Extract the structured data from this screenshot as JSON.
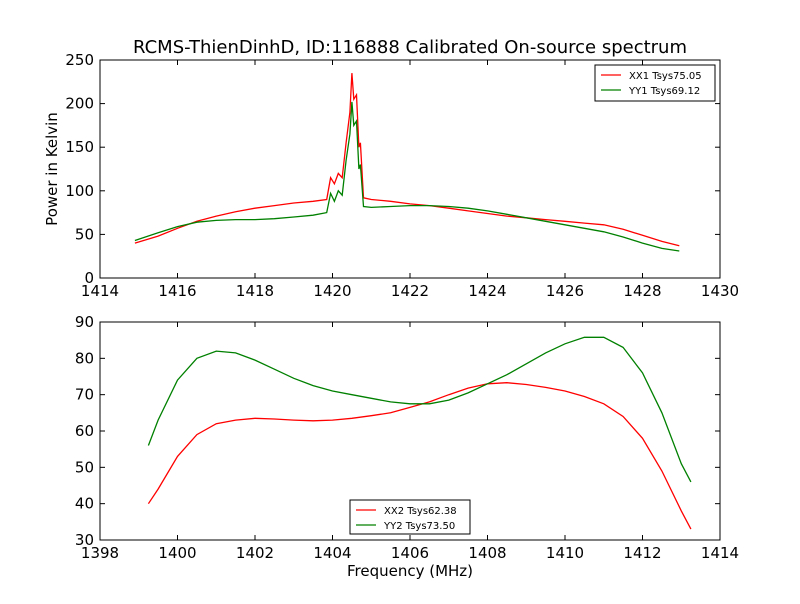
{
  "figure": {
    "title": "RCMS-ThienDinhD, ID:116888 Calibrated On-source spectrum"
  },
  "chart_data": [
    {
      "type": "line",
      "title": "RCMS-ThienDinhD, ID:116888 Calibrated On-source spectrum",
      "xlabel": "",
      "ylabel": "Power in Kelvin",
      "xlim": [
        1414,
        1430
      ],
      "ylim": [
        0,
        250
      ],
      "xticks": [
        "1414",
        "1416",
        "1418",
        "1420",
        "1422",
        "1424",
        "1426",
        "1428",
        "1430"
      ],
      "yticks": [
        "0",
        "50",
        "100",
        "150",
        "200",
        "250"
      ],
      "grid": false,
      "legend_position": "top-right",
      "series": [
        {
          "name": "XX1 Tsys75.05",
          "color": "#ff0000",
          "points": [
            [
              1414.9,
              40
            ],
            [
              1415.5,
              48
            ],
            [
              1416,
              57
            ],
            [
              1416.5,
              65
            ],
            [
              1417,
              71
            ],
            [
              1417.5,
              76
            ],
            [
              1418,
              80
            ],
            [
              1418.5,
              83
            ],
            [
              1419,
              86
            ],
            [
              1419.5,
              88
            ],
            [
              1419.85,
              90
            ],
            [
              1419.95,
              115
            ],
            [
              1420.05,
              108
            ],
            [
              1420.15,
              120
            ],
            [
              1420.25,
              115
            ],
            [
              1420.35,
              155
            ],
            [
              1420.45,
              190
            ],
            [
              1420.5,
              235
            ],
            [
              1420.55,
              205
            ],
            [
              1420.62,
              210
            ],
            [
              1420.68,
              150
            ],
            [
              1420.72,
              155
            ],
            [
              1420.8,
              92
            ],
            [
              1421,
              90
            ],
            [
              1421.5,
              88
            ],
            [
              1422,
              85
            ],
            [
              1422.5,
              83
            ],
            [
              1423,
              80
            ],
            [
              1423.5,
              77
            ],
            [
              1424,
              74
            ],
            [
              1424.5,
              71
            ],
            [
              1425,
              69
            ],
            [
              1425.5,
              67
            ],
            [
              1426,
              65
            ],
            [
              1426.5,
              63
            ],
            [
              1427,
              61
            ],
            [
              1427.5,
              56
            ],
            [
              1428,
              49
            ],
            [
              1428.5,
              42
            ],
            [
              1428.95,
              37
            ]
          ]
        },
        {
          "name": "YY1 Tsys69.12",
          "color": "#008000",
          "points": [
            [
              1414.9,
              43
            ],
            [
              1415.5,
              52
            ],
            [
              1416,
              59
            ],
            [
              1416.5,
              64
            ],
            [
              1417,
              66
            ],
            [
              1417.5,
              67
            ],
            [
              1418,
              67
            ],
            [
              1418.5,
              68
            ],
            [
              1419,
              70
            ],
            [
              1419.5,
              72
            ],
            [
              1419.85,
              75
            ],
            [
              1419.95,
              97
            ],
            [
              1420.05,
              88
            ],
            [
              1420.15,
              100
            ],
            [
              1420.25,
              95
            ],
            [
              1420.35,
              135
            ],
            [
              1420.45,
              165
            ],
            [
              1420.5,
              202
            ],
            [
              1420.55,
              175
            ],
            [
              1420.62,
              180
            ],
            [
              1420.68,
              125
            ],
            [
              1420.72,
              130
            ],
            [
              1420.8,
              82
            ],
            [
              1421,
              81
            ],
            [
              1421.5,
              82
            ],
            [
              1422,
              83
            ],
            [
              1422.5,
              83
            ],
            [
              1423,
              82
            ],
            [
              1423.5,
              80
            ],
            [
              1424,
              77
            ],
            [
              1424.5,
              73
            ],
            [
              1425,
              69
            ],
            [
              1425.5,
              65
            ],
            [
              1426,
              61
            ],
            [
              1426.5,
              57
            ],
            [
              1427,
              53
            ],
            [
              1427.5,
              47
            ],
            [
              1428,
              40
            ],
            [
              1428.5,
              34
            ],
            [
              1428.95,
              31
            ]
          ]
        }
      ]
    },
    {
      "type": "line",
      "title": "",
      "xlabel": "Frequency (MHz)",
      "ylabel": "",
      "xlim": [
        1398,
        1414
      ],
      "ylim": [
        30,
        90
      ],
      "xticks": [
        "1398",
        "1400",
        "1402",
        "1404",
        "1406",
        "1408",
        "1410",
        "1412",
        "1414"
      ],
      "yticks": [
        "30",
        "40",
        "50",
        "60",
        "70",
        "80",
        "90"
      ],
      "grid": false,
      "legend_position": "bottom-center",
      "series": [
        {
          "name": "XX2 Tsys62.38",
          "color": "#ff0000",
          "points": [
            [
              1399.25,
              40
            ],
            [
              1399.5,
              44
            ],
            [
              1400,
              53
            ],
            [
              1400.5,
              59
            ],
            [
              1401,
              62
            ],
            [
              1401.5,
              63
            ],
            [
              1402,
              63.5
            ],
            [
              1402.5,
              63.3
            ],
            [
              1403,
              63
            ],
            [
              1403.5,
              62.8
            ],
            [
              1404,
              63
            ],
            [
              1404.5,
              63.5
            ],
            [
              1405,
              64.2
            ],
            [
              1405.5,
              65
            ],
            [
              1406,
              66.5
            ],
            [
              1406.5,
              68
            ],
            [
              1407,
              70
            ],
            [
              1407.5,
              71.8
            ],
            [
              1408,
              73
            ],
            [
              1408.5,
              73.3
            ],
            [
              1409,
              72.8
            ],
            [
              1409.5,
              72
            ],
            [
              1410,
              71
            ],
            [
              1410.5,
              69.5
            ],
            [
              1411,
              67.5
            ],
            [
              1411.5,
              64
            ],
            [
              1412,
              58
            ],
            [
              1412.5,
              49
            ],
            [
              1413,
              38
            ],
            [
              1413.25,
              33
            ]
          ]
        },
        {
          "name": "YY2 Tsys73.50",
          "color": "#008000",
          "points": [
            [
              1399.25,
              56
            ],
            [
              1399.5,
              63
            ],
            [
              1400,
              74
            ],
            [
              1400.5,
              80
            ],
            [
              1401,
              82
            ],
            [
              1401.5,
              81.5
            ],
            [
              1402,
              79.5
            ],
            [
              1402.5,
              77
            ],
            [
              1403,
              74.5
            ],
            [
              1403.5,
              72.5
            ],
            [
              1404,
              71
            ],
            [
              1404.5,
              70
            ],
            [
              1405,
              69
            ],
            [
              1405.5,
              68
            ],
            [
              1406,
              67.5
            ],
            [
              1406.5,
              67.5
            ],
            [
              1407,
              68.5
            ],
            [
              1407.5,
              70.5
            ],
            [
              1408,
              73
            ],
            [
              1408.5,
              75.5
            ],
            [
              1409,
              78.5
            ],
            [
              1409.5,
              81.5
            ],
            [
              1410,
              84
            ],
            [
              1410.5,
              85.8
            ],
            [
              1411,
              85.8
            ],
            [
              1411.5,
              83
            ],
            [
              1412,
              76
            ],
            [
              1412.5,
              65
            ],
            [
              1413,
              51
            ],
            [
              1413.25,
              46
            ]
          ]
        }
      ]
    }
  ]
}
